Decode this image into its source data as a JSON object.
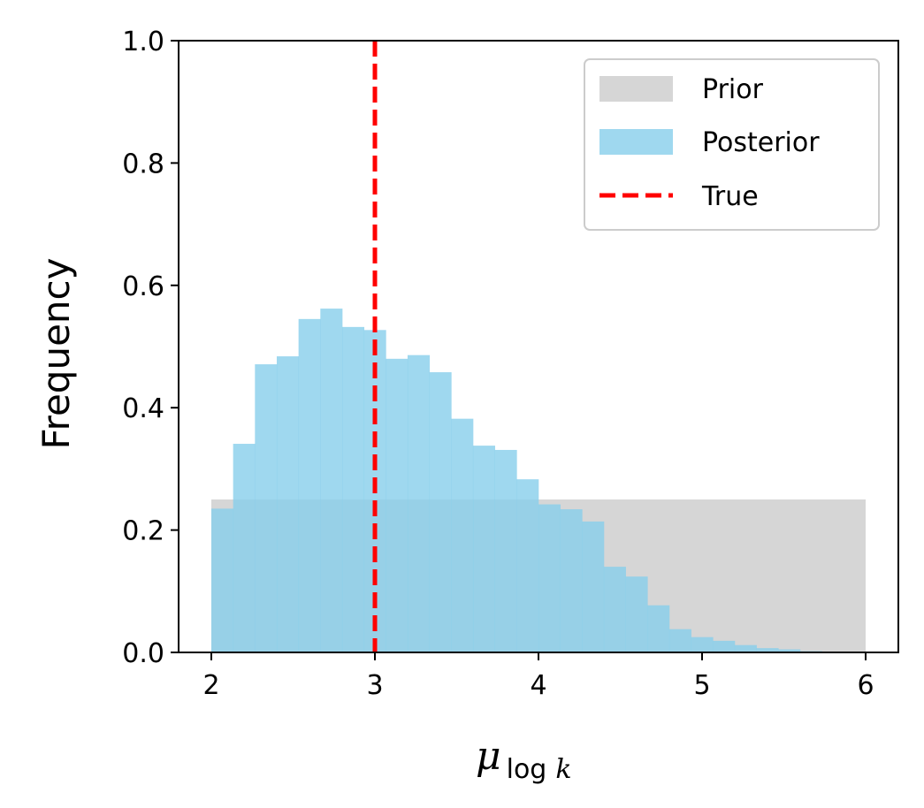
{
  "chart_data": {
    "type": "bar",
    "title": "",
    "xlabel": {
      "symbol": "μ",
      "subscript_text": "log",
      "subscript_var": "k"
    },
    "ylabel": "Frequency",
    "xlim": [
      1.8,
      6.2
    ],
    "ylim": [
      0.0,
      1.0
    ],
    "xticks": [
      2,
      3,
      4,
      5,
      6
    ],
    "xtick_labels": [
      "2",
      "3",
      "4",
      "5",
      "6"
    ],
    "yticks": [
      0.0,
      0.2,
      0.4,
      0.6,
      0.8,
      1.0
    ],
    "ytick_labels": [
      "0.0",
      "0.2",
      "0.4",
      "0.6",
      "0.8",
      "1.0"
    ],
    "grid": false,
    "legend": {
      "placement": "top-right",
      "entries": [
        {
          "label": "Prior",
          "kind": "patch",
          "color": "#d6d6d6"
        },
        {
          "label": "Posterior",
          "kind": "patch",
          "color": "#87ceeb"
        },
        {
          "label": "True",
          "kind": "dashed-line",
          "color": "#ff0000"
        }
      ]
    },
    "series": [
      {
        "name": "Prior",
        "color": "#d6d6d6",
        "bins": [
          [
            2.0,
            6.0
          ]
        ],
        "values": [
          0.25
        ]
      },
      {
        "name": "Posterior",
        "color": "#87ceeb",
        "opacity": 0.8,
        "bin_start": 2.0,
        "bin_width": 0.1333,
        "values": [
          0.235,
          0.341,
          0.471,
          0.484,
          0.545,
          0.562,
          0.532,
          0.527,
          0.48,
          0.486,
          0.458,
          0.382,
          0.338,
          0.331,
          0.283,
          0.242,
          0.234,
          0.214,
          0.14,
          0.124,
          0.077,
          0.038,
          0.025,
          0.019,
          0.012,
          0.007,
          0.005,
          0.002,
          0.001,
          0.0
        ]
      }
    ],
    "reference_line": {
      "name": "True",
      "x": 3.0,
      "color": "#ff0000",
      "style": "dashed"
    }
  }
}
